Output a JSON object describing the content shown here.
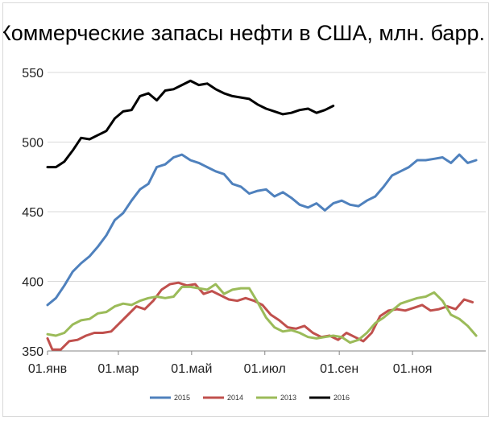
{
  "chart_data": {
    "type": "line",
    "title": "Коммерческие запасы нефти в США, млн. барр.",
    "xlabel": "",
    "ylabel": "",
    "x_range_days": [
      0,
      365
    ],
    "ylim": [
      350,
      550
    ],
    "y_ticks": [
      350,
      400,
      450,
      500,
      550
    ],
    "x_ticks": [
      {
        "label": "01.янв",
        "day": 0
      },
      {
        "label": "01.мар",
        "day": 59
      },
      {
        "label": "01.май",
        "day": 120
      },
      {
        "label": "01.июл",
        "day": 181
      },
      {
        "label": "01.сен",
        "day": 243
      },
      {
        "label": "01.ноя",
        "day": 304
      }
    ],
    "grid": "horizontal",
    "legend_position": "bottom",
    "series": [
      {
        "name": "2015",
        "color": "#4f81bd",
        "points": [
          [
            0,
            383
          ],
          [
            7,
            388
          ],
          [
            14,
            397
          ],
          [
            21,
            407
          ],
          [
            28,
            413
          ],
          [
            35,
            418
          ],
          [
            42,
            425
          ],
          [
            49,
            433
          ],
          [
            56,
            444
          ],
          [
            63,
            449
          ],
          [
            70,
            458
          ],
          [
            77,
            466
          ],
          [
            84,
            470
          ],
          [
            91,
            482
          ],
          [
            98,
            484
          ],
          [
            105,
            489
          ],
          [
            112,
            491
          ],
          [
            119,
            487
          ],
          [
            126,
            485
          ],
          [
            133,
            482
          ],
          [
            140,
            479
          ],
          [
            147,
            477
          ],
          [
            154,
            470
          ],
          [
            161,
            468
          ],
          [
            168,
            463
          ],
          [
            175,
            465
          ],
          [
            182,
            466
          ],
          [
            189,
            461
          ],
          [
            196,
            464
          ],
          [
            203,
            460
          ],
          [
            210,
            455
          ],
          [
            217,
            453
          ],
          [
            224,
            456
          ],
          [
            231,
            451
          ],
          [
            238,
            456
          ],
          [
            245,
            458
          ],
          [
            252,
            455
          ],
          [
            259,
            454
          ],
          [
            266,
            458
          ],
          [
            273,
            461
          ],
          [
            280,
            468
          ],
          [
            287,
            476
          ],
          [
            294,
            479
          ],
          [
            301,
            482
          ],
          [
            308,
            487
          ],
          [
            315,
            487
          ],
          [
            322,
            488
          ],
          [
            329,
            489
          ],
          [
            336,
            485
          ],
          [
            343,
            491
          ],
          [
            350,
            485
          ],
          [
            357,
            487
          ]
        ]
      },
      {
        "name": "2014",
        "color": "#c0504d",
        "points": [
          [
            0,
            359
          ],
          [
            4,
            351
          ],
          [
            11,
            351
          ],
          [
            18,
            357
          ],
          [
            25,
            358
          ],
          [
            32,
            361
          ],
          [
            39,
            363
          ],
          [
            46,
            363
          ],
          [
            53,
            364
          ],
          [
            60,
            370
          ],
          [
            67,
            376
          ],
          [
            74,
            382
          ],
          [
            81,
            380
          ],
          [
            88,
            386
          ],
          [
            95,
            394
          ],
          [
            102,
            398
          ],
          [
            109,
            399
          ],
          [
            116,
            397
          ],
          [
            123,
            398
          ],
          [
            130,
            391
          ],
          [
            137,
            393
          ],
          [
            144,
            390
          ],
          [
            151,
            387
          ],
          [
            158,
            386
          ],
          [
            165,
            388
          ],
          [
            172,
            386
          ],
          [
            179,
            383
          ],
          [
            186,
            376
          ],
          [
            193,
            372
          ],
          [
            200,
            367
          ],
          [
            207,
            366
          ],
          [
            214,
            368
          ],
          [
            221,
            363
          ],
          [
            228,
            360
          ],
          [
            235,
            361
          ],
          [
            242,
            358
          ],
          [
            249,
            363
          ],
          [
            256,
            360
          ],
          [
            263,
            357
          ],
          [
            270,
            363
          ],
          [
            277,
            375
          ],
          [
            284,
            379
          ],
          [
            291,
            380
          ],
          [
            298,
            379
          ],
          [
            305,
            381
          ],
          [
            312,
            383
          ],
          [
            319,
            379
          ],
          [
            326,
            380
          ],
          [
            333,
            382
          ],
          [
            340,
            380
          ],
          [
            347,
            387
          ],
          [
            354,
            385
          ]
        ]
      },
      {
        "name": "2013",
        "color": "#9bbb59",
        "points": [
          [
            0,
            362
          ],
          [
            7,
            361
          ],
          [
            14,
            363
          ],
          [
            21,
            369
          ],
          [
            28,
            372
          ],
          [
            35,
            373
          ],
          [
            42,
            377
          ],
          [
            49,
            378
          ],
          [
            56,
            382
          ],
          [
            63,
            384
          ],
          [
            70,
            383
          ],
          [
            77,
            386
          ],
          [
            84,
            388
          ],
          [
            91,
            389
          ],
          [
            98,
            388
          ],
          [
            105,
            389
          ],
          [
            112,
            396
          ],
          [
            119,
            396
          ],
          [
            126,
            395
          ],
          [
            133,
            394
          ],
          [
            140,
            398
          ],
          [
            147,
            391
          ],
          [
            154,
            394
          ],
          [
            161,
            395
          ],
          [
            168,
            395
          ],
          [
            175,
            385
          ],
          [
            182,
            374
          ],
          [
            189,
            367
          ],
          [
            196,
            364
          ],
          [
            203,
            365
          ],
          [
            210,
            363
          ],
          [
            217,
            360
          ],
          [
            224,
            359
          ],
          [
            231,
            360
          ],
          [
            238,
            361
          ],
          [
            245,
            360
          ],
          [
            252,
            356
          ],
          [
            259,
            358
          ],
          [
            266,
            363
          ],
          [
            273,
            370
          ],
          [
            280,
            374
          ],
          [
            287,
            379
          ],
          [
            294,
            384
          ],
          [
            301,
            386
          ],
          [
            308,
            388
          ],
          [
            315,
            389
          ],
          [
            322,
            392
          ],
          [
            329,
            386
          ],
          [
            336,
            376
          ],
          [
            343,
            373
          ],
          [
            350,
            368
          ],
          [
            357,
            361
          ]
        ]
      },
      {
        "name": "2016",
        "color": "#000000",
        "points": [
          [
            0,
            482
          ],
          [
            7,
            482
          ],
          [
            14,
            486
          ],
          [
            21,
            494
          ],
          [
            28,
            503
          ],
          [
            35,
            502
          ],
          [
            42,
            505
          ],
          [
            49,
            508
          ],
          [
            56,
            517
          ],
          [
            63,
            522
          ],
          [
            70,
            523
          ],
          [
            77,
            533
          ],
          [
            84,
            535
          ],
          [
            91,
            530
          ],
          [
            98,
            537
          ],
          [
            105,
            538
          ],
          [
            112,
            541
          ],
          [
            119,
            544
          ],
          [
            126,
            541
          ],
          [
            133,
            542
          ],
          [
            140,
            538
          ],
          [
            147,
            535
          ],
          [
            154,
            533
          ],
          [
            161,
            532
          ],
          [
            168,
            531
          ],
          [
            175,
            527
          ],
          [
            182,
            524
          ],
          [
            189,
            522
          ],
          [
            196,
            520
          ],
          [
            203,
            521
          ],
          [
            210,
            523
          ],
          [
            217,
            524
          ],
          [
            224,
            521
          ],
          [
            231,
            523
          ],
          [
            238,
            526
          ]
        ]
      }
    ]
  }
}
